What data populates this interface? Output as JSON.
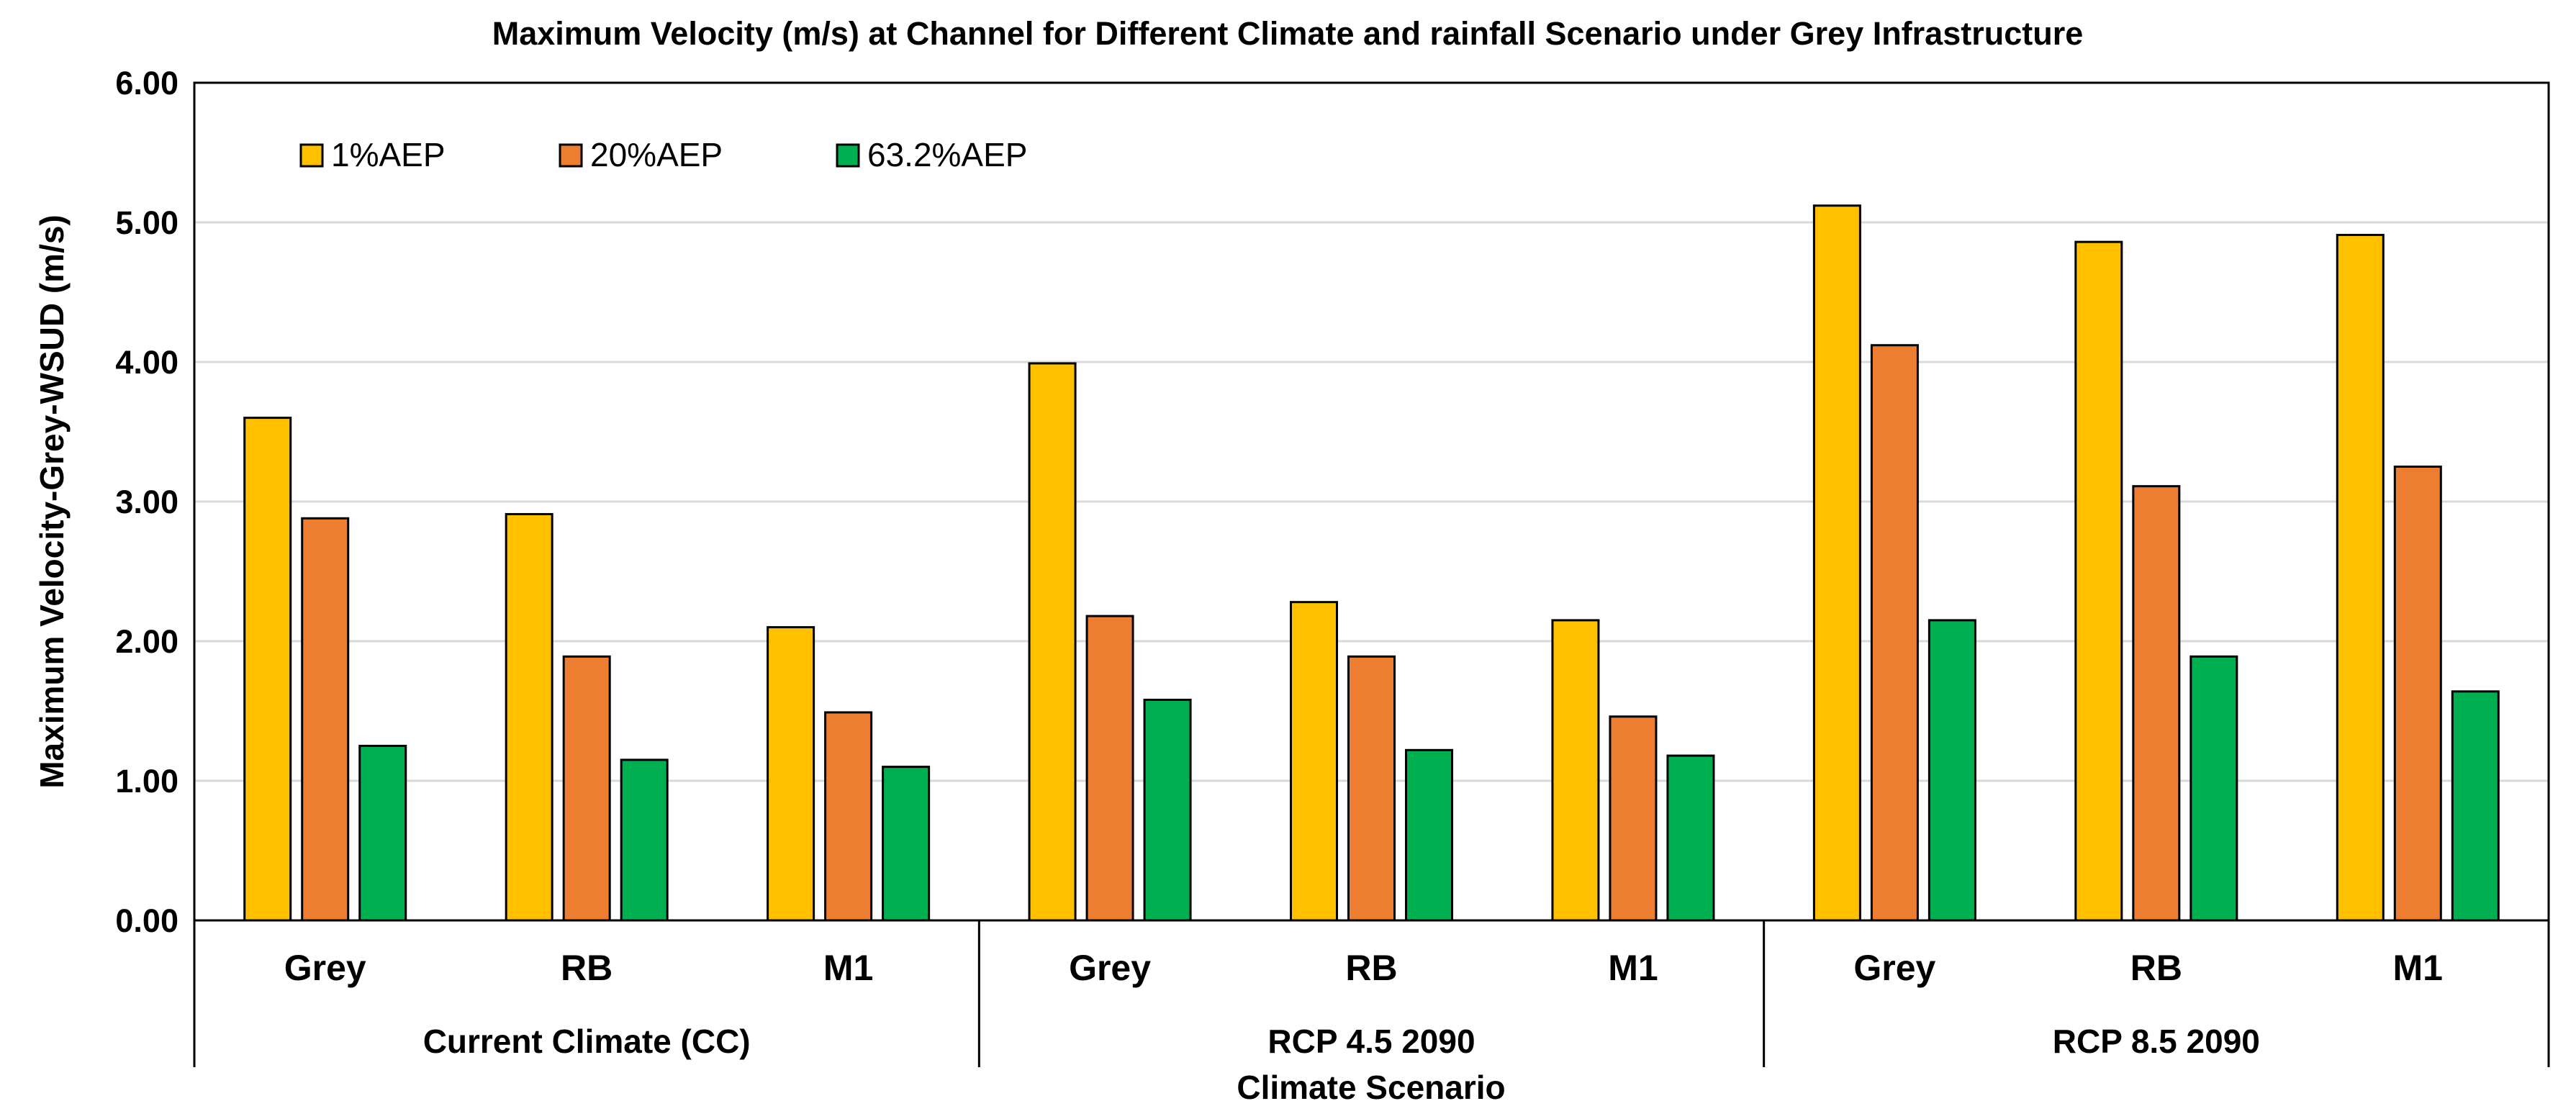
{
  "chart_data": {
    "type": "bar",
    "title": "Maximum Velocity (m/s) at Channel for Different Climate and rainfall Scenario under Grey Infrastructure",
    "xlabel": "Climate Scenario",
    "ylabel": "Maximum Velocity-Grey-WSUD (m/s)",
    "ylim": [
      0,
      6
    ],
    "yticks": [
      "0.00",
      "1.00",
      "2.00",
      "3.00",
      "4.00",
      "5.00",
      "6.00"
    ],
    "groups": [
      "Current Climate (CC)",
      "RCP 4.5 2090",
      "RCP 8.5 2090"
    ],
    "categories": [
      "Grey",
      "RB",
      "M1",
      "Grey",
      "RB",
      "M1",
      "Grey",
      "RB",
      "M1"
    ],
    "legend_position": "top-left",
    "grid": true,
    "series": [
      {
        "name": "1%AEP",
        "color": "#FFC000",
        "values": [
          3.6,
          2.91,
          2.1,
          3.99,
          2.28,
          2.15,
          5.12,
          4.86,
          4.91
        ]
      },
      {
        "name": "20%AEP",
        "color": "#ED7D31",
        "values": [
          2.88,
          1.89,
          1.49,
          2.18,
          1.89,
          1.46,
          4.12,
          3.11,
          3.25
        ]
      },
      {
        "name": "63.2%AEP",
        "color": "#00B050",
        "values": [
          1.25,
          1.15,
          1.1,
          1.58,
          1.22,
          1.18,
          2.15,
          1.89,
          1.64
        ]
      }
    ]
  }
}
